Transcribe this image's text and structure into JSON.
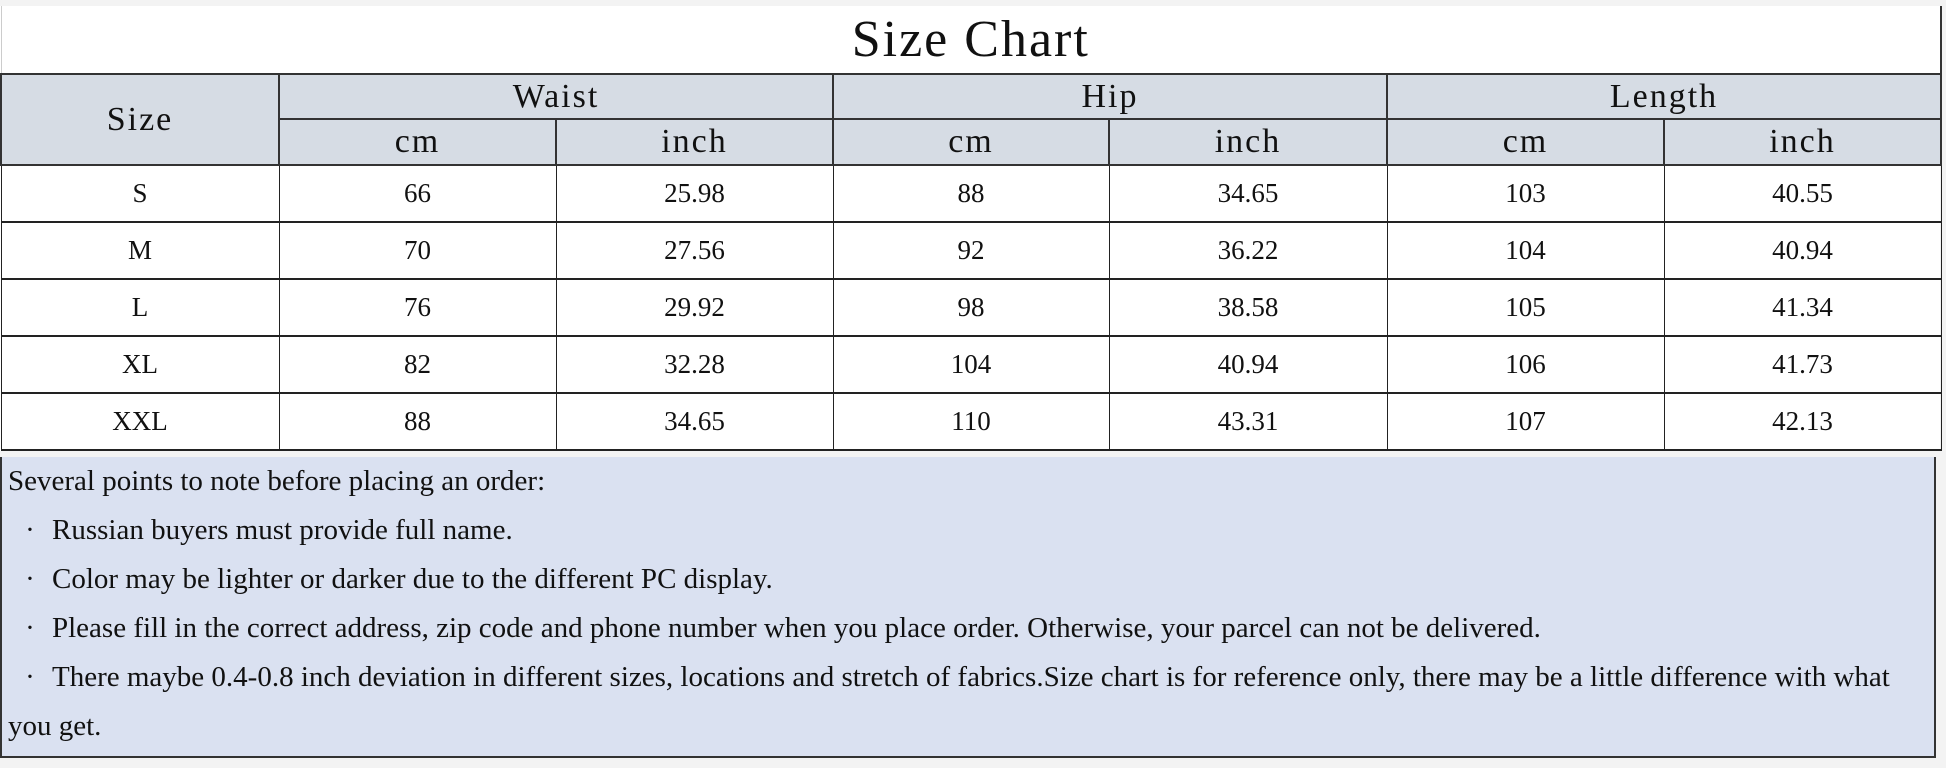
{
  "title": "Size Chart",
  "header": {
    "size": "Size",
    "groups": [
      "Waist",
      "Hip",
      "Length"
    ],
    "units": [
      "cm",
      "inch",
      "cm",
      "inch",
      "cm",
      "inch"
    ]
  },
  "rows": [
    {
      "size": "S",
      "values": [
        "66",
        "25.98",
        "88",
        "34.65",
        "103",
        "40.55"
      ]
    },
    {
      "size": "M",
      "values": [
        "70",
        "27.56",
        "92",
        "36.22",
        "104",
        "40.94"
      ]
    },
    {
      "size": "L",
      "values": [
        "76",
        "29.92",
        "98",
        "38.58",
        "105",
        "41.34"
      ]
    },
    {
      "size": "XL",
      "values": [
        "82",
        "32.28",
        "104",
        "40.94",
        "106",
        "41.73"
      ]
    },
    {
      "size": "XXL",
      "values": [
        "88",
        "34.65",
        "110",
        "43.31",
        "107",
        "42.13"
      ]
    }
  ],
  "notes": {
    "heading": "Several points to note before placing an order:",
    "bullet": "·",
    "items": [
      "Russian buyers must provide full name.",
      "Color may be lighter or darker due to the different PC display.",
      "Please fill in the correct address, zip code and phone number when you place order. Otherwise, your parcel can not be delivered.",
      "There maybe 0.4-0.8 inch deviation in different sizes, locations and stretch of fabrics.Size chart is for reference only, there may be a little difference with what you get."
    ]
  },
  "colors": {
    "header_bg": "#d6dce4",
    "notes_bg": "#dae1f1"
  }
}
